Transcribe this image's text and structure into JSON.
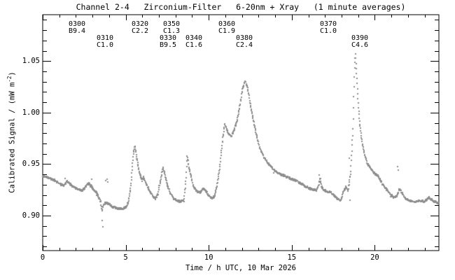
{
  "chart_data": {
    "type": "scatter",
    "title": "Channel 2-4   Zirconium-Filter   6-20nm + Xray   (1 minute averages)",
    "xlabel": "Time / h UTC, 10 Mar 2026",
    "ylabel": "Calibrated Signal / (mW m-2)",
    "ylabel_parts": {
      "pre": "Calibrated Signal / (mW m",
      "sup": "-2",
      "post": ")"
    },
    "xlim": [
      0,
      23.86
    ],
    "ylim": [
      0.866,
      1.095
    ],
    "x_major_ticks": [
      0,
      5,
      10,
      15,
      20
    ],
    "x_major_tick_labels": [
      "0",
      "5",
      "10",
      "15",
      "20"
    ],
    "x_minor_step": 1,
    "y_major_ticks": [
      0.9,
      0.95,
      1.0,
      1.05
    ],
    "y_major_tick_labels": [
      "0.90",
      "0.95",
      "1.00",
      "1.05"
    ],
    "y_minor_step": 0.01,
    "grid": false,
    "legend": "none",
    "point_color": "#8e8e8e",
    "axis_color": "#000000",
    "background_color": "#ffffff",
    "sample_interval_minutes": 1,
    "series": [
      {
        "name": "calibrated_signal",
        "keypoints": [
          [
            0.0,
            0.938
          ],
          [
            0.3,
            0.937
          ],
          [
            0.6,
            0.935
          ],
          [
            0.9,
            0.9325
          ],
          [
            1.1,
            0.93
          ],
          [
            1.3,
            0.9295
          ],
          [
            1.45,
            0.9335
          ],
          [
            1.6,
            0.9315
          ],
          [
            1.8,
            0.9285
          ],
          [
            2.0,
            0.9265
          ],
          [
            2.2,
            0.925
          ],
          [
            2.4,
            0.9245
          ],
          [
            2.6,
            0.9285
          ],
          [
            2.75,
            0.9315
          ],
          [
            2.9,
            0.9295
          ],
          [
            3.1,
            0.924
          ],
          [
            3.25,
            0.9225
          ],
          [
            3.4,
            0.9165
          ],
          [
            3.5,
            0.9135
          ],
          [
            3.57,
            0.904
          ],
          [
            3.65,
            0.9105
          ],
          [
            3.8,
            0.9125
          ],
          [
            4.0,
            0.9115
          ],
          [
            4.2,
            0.9085
          ],
          [
            4.5,
            0.907
          ],
          [
            4.8,
            0.9065
          ],
          [
            5.0,
            0.908
          ],
          [
            5.15,
            0.9125
          ],
          [
            5.3,
            0.9285
          ],
          [
            5.45,
            0.9575
          ],
          [
            5.55,
            0.968
          ],
          [
            5.65,
            0.9575
          ],
          [
            5.8,
            0.9435
          ],
          [
            5.95,
            0.9355
          ],
          [
            6.1,
            0.9365
          ],
          [
            6.25,
            0.9305
          ],
          [
            6.45,
            0.9235
          ],
          [
            6.65,
            0.9185
          ],
          [
            6.8,
            0.9165
          ],
          [
            6.95,
            0.921
          ],
          [
            7.1,
            0.9345
          ],
          [
            7.25,
            0.9465
          ],
          [
            7.4,
            0.9365
          ],
          [
            7.55,
            0.9275
          ],
          [
            7.7,
            0.9215
          ],
          [
            7.9,
            0.9165
          ],
          [
            8.1,
            0.9145
          ],
          [
            8.3,
            0.9135
          ],
          [
            8.5,
            0.9145
          ],
          [
            8.62,
            0.933
          ],
          [
            8.7,
            0.9575
          ],
          [
            8.8,
            0.9475
          ],
          [
            8.95,
            0.9365
          ],
          [
            9.1,
            0.9275
          ],
          [
            9.3,
            0.9235
          ],
          [
            9.5,
            0.9225
          ],
          [
            9.65,
            0.9265
          ],
          [
            9.8,
            0.9245
          ],
          [
            10.0,
            0.9195
          ],
          [
            10.2,
            0.9165
          ],
          [
            10.35,
            0.9185
          ],
          [
            10.5,
            0.9285
          ],
          [
            10.65,
            0.9445
          ],
          [
            10.8,
            0.9685
          ],
          [
            10.95,
            0.9885
          ],
          [
            11.05,
            0.9855
          ],
          [
            11.2,
            0.9795
          ],
          [
            11.35,
            0.9765
          ],
          [
            11.5,
            0.9815
          ],
          [
            11.7,
            0.9925
          ],
          [
            11.9,
            1.0085
          ],
          [
            12.05,
            1.0245
          ],
          [
            12.2,
            1.031
          ],
          [
            12.35,
            1.023
          ],
          [
            12.5,
            1.008
          ],
          [
            12.65,
            0.996
          ],
          [
            12.8,
            0.9835
          ],
          [
            12.95,
            0.9725
          ],
          [
            13.1,
            0.9645
          ],
          [
            13.3,
            0.9575
          ],
          [
            13.5,
            0.9525
          ],
          [
            13.7,
            0.9485
          ],
          [
            13.9,
            0.9445
          ],
          [
            14.1,
            0.942
          ],
          [
            14.4,
            0.9395
          ],
          [
            14.7,
            0.9375
          ],
          [
            15.0,
            0.9355
          ],
          [
            15.3,
            0.9335
          ],
          [
            15.6,
            0.9305
          ],
          [
            15.9,
            0.9275
          ],
          [
            16.2,
            0.9255
          ],
          [
            16.5,
            0.9245
          ],
          [
            16.62,
            0.929
          ],
          [
            16.7,
            0.937
          ],
          [
            16.78,
            0.929
          ],
          [
            16.9,
            0.925
          ],
          [
            17.1,
            0.9235
          ],
          [
            17.35,
            0.9225
          ],
          [
            17.6,
            0.9185
          ],
          [
            17.8,
            0.9155
          ],
          [
            17.95,
            0.9145
          ],
          [
            18.1,
            0.9225
          ],
          [
            18.25,
            0.9275
          ],
          [
            18.4,
            0.9245
          ],
          [
            18.55,
            0.9425
          ],
          [
            18.68,
            0.9825
          ],
          [
            18.78,
            1.0425
          ],
          [
            18.83,
            1.0585
          ],
          [
            18.9,
            1.0385
          ],
          [
            19.0,
            1.0085
          ],
          [
            19.1,
            0.9885
          ],
          [
            19.25,
            0.97
          ],
          [
            19.4,
            0.9585
          ],
          [
            19.55,
            0.9505
          ],
          [
            19.75,
            0.9455
          ],
          [
            20.0,
            0.9405
          ],
          [
            20.2,
            0.9385
          ],
          [
            20.45,
            0.9305
          ],
          [
            20.7,
            0.9255
          ],
          [
            20.95,
            0.9205
          ],
          [
            21.15,
            0.9175
          ],
          [
            21.35,
            0.9195
          ],
          [
            21.5,
            0.9265
          ],
          [
            21.65,
            0.9215
          ],
          [
            21.85,
            0.9165
          ],
          [
            22.1,
            0.9145
          ],
          [
            22.4,
            0.9135
          ],
          [
            22.7,
            0.9145
          ],
          [
            23.0,
            0.9135
          ],
          [
            23.25,
            0.9175
          ],
          [
            23.5,
            0.9145
          ],
          [
            23.75,
            0.9125
          ],
          [
            23.85,
            0.912
          ]
        ]
      }
    ],
    "outlier_points": [
      [
        1.35,
        0.936
      ],
      [
        2.95,
        0.9355
      ],
      [
        3.58,
        0.8955
      ],
      [
        3.62,
        0.889
      ],
      [
        3.8,
        0.934
      ],
      [
        3.87,
        0.9355
      ],
      [
        3.93,
        0.9325
      ],
      [
        16.66,
        0.9395
      ],
      [
        18.45,
        0.9555
      ],
      [
        18.5,
        0.915
      ],
      [
        21.38,
        0.9475
      ],
      [
        21.43,
        0.944
      ]
    ],
    "annotations": [
      {
        "time": "0300",
        "class": "B9.4",
        "row": 1,
        "x_hour": 1.56
      },
      {
        "time": "0310",
        "class": "C1.0",
        "row": 2,
        "x_hour": 3.25
      },
      {
        "time": "0320",
        "class": "C2.2",
        "row": 1,
        "x_hour": 5.35
      },
      {
        "time": "0330",
        "class": "B9.5",
        "row": 2,
        "x_hour": 7.04
      },
      {
        "time": "0350",
        "class": "C1.3",
        "row": 1,
        "x_hour": 7.25
      },
      {
        "time": "0340",
        "class": "C1.6",
        "row": 2,
        "x_hour": 8.6
      },
      {
        "time": "0360",
        "class": "C1.9",
        "row": 1,
        "x_hour": 10.58
      },
      {
        "time": "0380",
        "class": "C2.4",
        "row": 2,
        "x_hour": 11.63
      },
      {
        "time": "0370",
        "class": "C1.0",
        "row": 1,
        "x_hour": 16.69
      },
      {
        "time": "0390",
        "class": "C4.6",
        "row": 2,
        "x_hour": 18.59
      }
    ]
  }
}
